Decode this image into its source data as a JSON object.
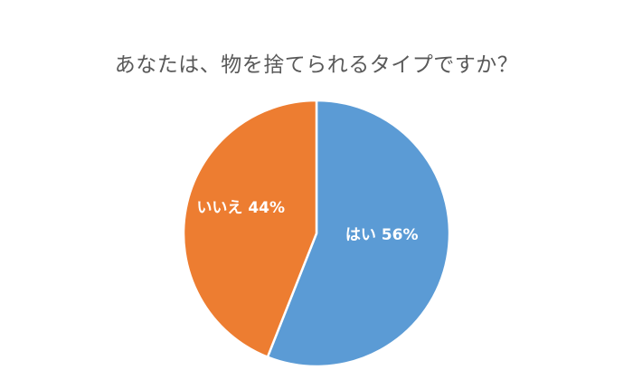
{
  "chart_data": {
    "type": "pie",
    "title": "あなたは、物を捨てられるタイプですか？",
    "slices": [
      {
        "label": "はい",
        "value": 56,
        "display": "はい 56%",
        "color": "#5b9bd5"
      },
      {
        "label": "いいえ",
        "value": 44,
        "display": "いいえ 44%",
        "color": "#ed7d31"
      }
    ],
    "start_angle": "12 o'clock",
    "direction": "clockwise",
    "slice_border_color": "#ffffff",
    "legend": "none"
  }
}
